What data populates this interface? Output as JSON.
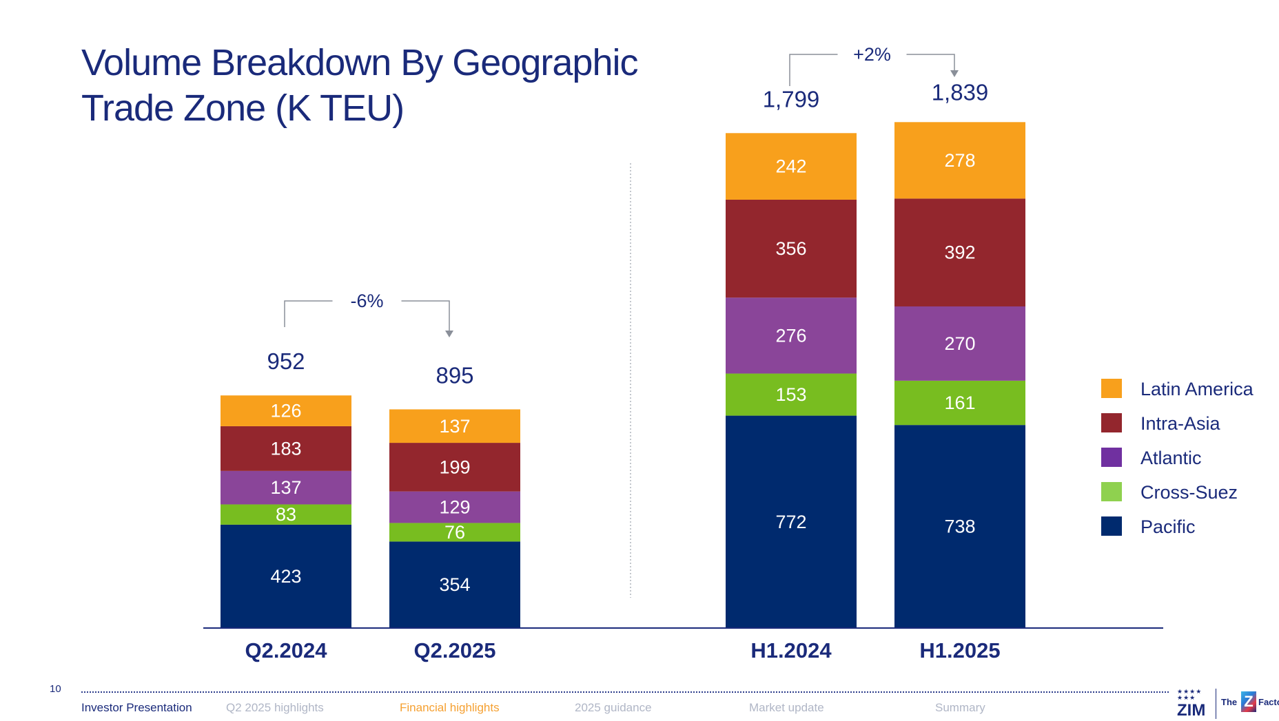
{
  "page": {
    "title_line1": "Volume Breakdown By Geographic",
    "title_line2": "Trade Zone (K TEU)",
    "page_number": "10"
  },
  "chart_data": {
    "type": "bar",
    "stacked": true,
    "title": "Volume Breakdown By Geographic Trade Zone (K TEU)",
    "categories": [
      "Q2.2024",
      "Q2.2025",
      "H1.2024",
      "H1.2025"
    ],
    "series": [
      {
        "name": "Pacific",
        "color": "#002a6e",
        "values": [
          423,
          354,
          772,
          738
        ]
      },
      {
        "name": "Cross-Suez",
        "color": "#78bd20",
        "values": [
          83,
          76,
          153,
          161
        ]
      },
      {
        "name": "Atlantic",
        "color": "#8a4599",
        "values": [
          137,
          129,
          276,
          270
        ]
      },
      {
        "name": "Intra-Asia",
        "color": "#93262d",
        "values": [
          183,
          199,
          356,
          392
        ]
      },
      {
        "name": "Latin America",
        "color": "#f8a01c",
        "values": [
          126,
          137,
          242,
          278
        ]
      }
    ],
    "totals": [
      "952",
      "895",
      "1,799",
      "1,839"
    ],
    "changes": [
      {
        "from": "Q2.2024",
        "to": "Q2.2025",
        "label": "-6%"
      },
      {
        "from": "H1.2024",
        "to": "H1.2025",
        "label": "+2%"
      }
    ],
    "legend_order": [
      "Latin America",
      "Intra-Asia",
      "Atlantic",
      "Cross-Suez",
      "Pacific"
    ],
    "legend_position": "right"
  },
  "colors": {
    "navy": "#1a2a7a",
    "axis": "#1a2a7a",
    "label_text": "#ffffff",
    "legend_pacific": "#002a6e",
    "legend_cross_suez": "#8fd14f",
    "legend_atlantic": "#7030a0",
    "legend_intra_asia": "#93262d",
    "legend_latin_america": "#f8a01c"
  },
  "footer": {
    "nav": [
      {
        "label": "Investor Presentation",
        "state": "dark"
      },
      {
        "label": "Q2 2025 highlights",
        "state": "muted"
      },
      {
        "label": "Financial highlights",
        "state": "active"
      },
      {
        "label": "2025 guidance",
        "state": "muted"
      },
      {
        "label": "Market update",
        "state": "muted"
      },
      {
        "label": "Summary",
        "state": "muted"
      }
    ],
    "logo": {
      "brand": "ZIM",
      "tag_the": "The",
      "tag_z": "Z",
      "tag_factor": "Factor"
    }
  }
}
